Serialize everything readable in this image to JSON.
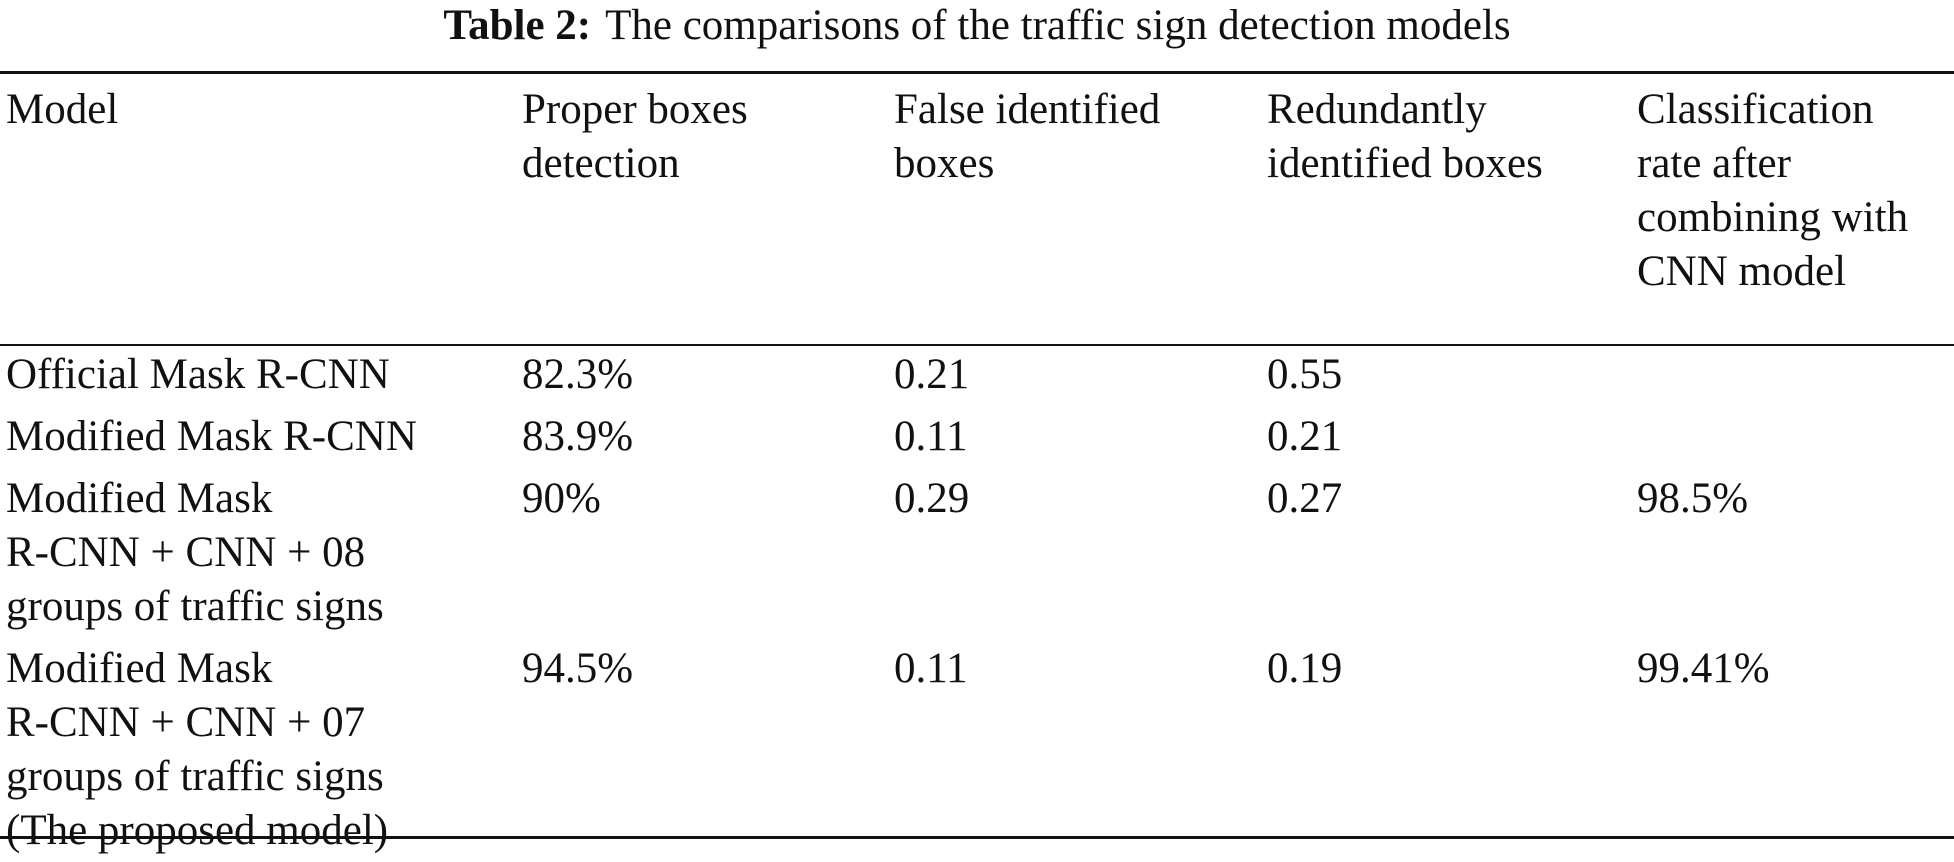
{
  "caption": {
    "label": "Table 2:",
    "text": "The comparisons of the traffic sign detection models"
  },
  "table": {
    "headers": [
      [
        "Model"
      ],
      [
        "Proper boxes",
        "detection"
      ],
      [
        "False identified",
        "boxes"
      ],
      [
        "Redundantly",
        "identified boxes"
      ],
      [
        "Classification",
        "rate after",
        "combining with",
        "CNN model"
      ]
    ],
    "rows": [
      {
        "model": [
          "Official Mask R-CNN"
        ],
        "proper": "82.3%",
        "false": "0.21",
        "redundant": "0.55",
        "classification": ""
      },
      {
        "model": [
          "Modified Mask R-CNN"
        ],
        "proper": "83.9%",
        "false": "0.11",
        "redundant": "0.21",
        "classification": ""
      },
      {
        "model": [
          "Modified Mask",
          "R-CNN + CNN + 08",
          "groups of traffic signs"
        ],
        "proper": "90%",
        "false": "0.29",
        "redundant": "0.27",
        "classification": "98.5%"
      },
      {
        "model": [
          "Modified Mask",
          "R-CNN + CNN + 07",
          "groups of traffic signs",
          "(The proposed model)"
        ],
        "proper": "94.5%",
        "false": "0.11",
        "redundant": "0.19",
        "classification": "99.41%"
      }
    ]
  }
}
